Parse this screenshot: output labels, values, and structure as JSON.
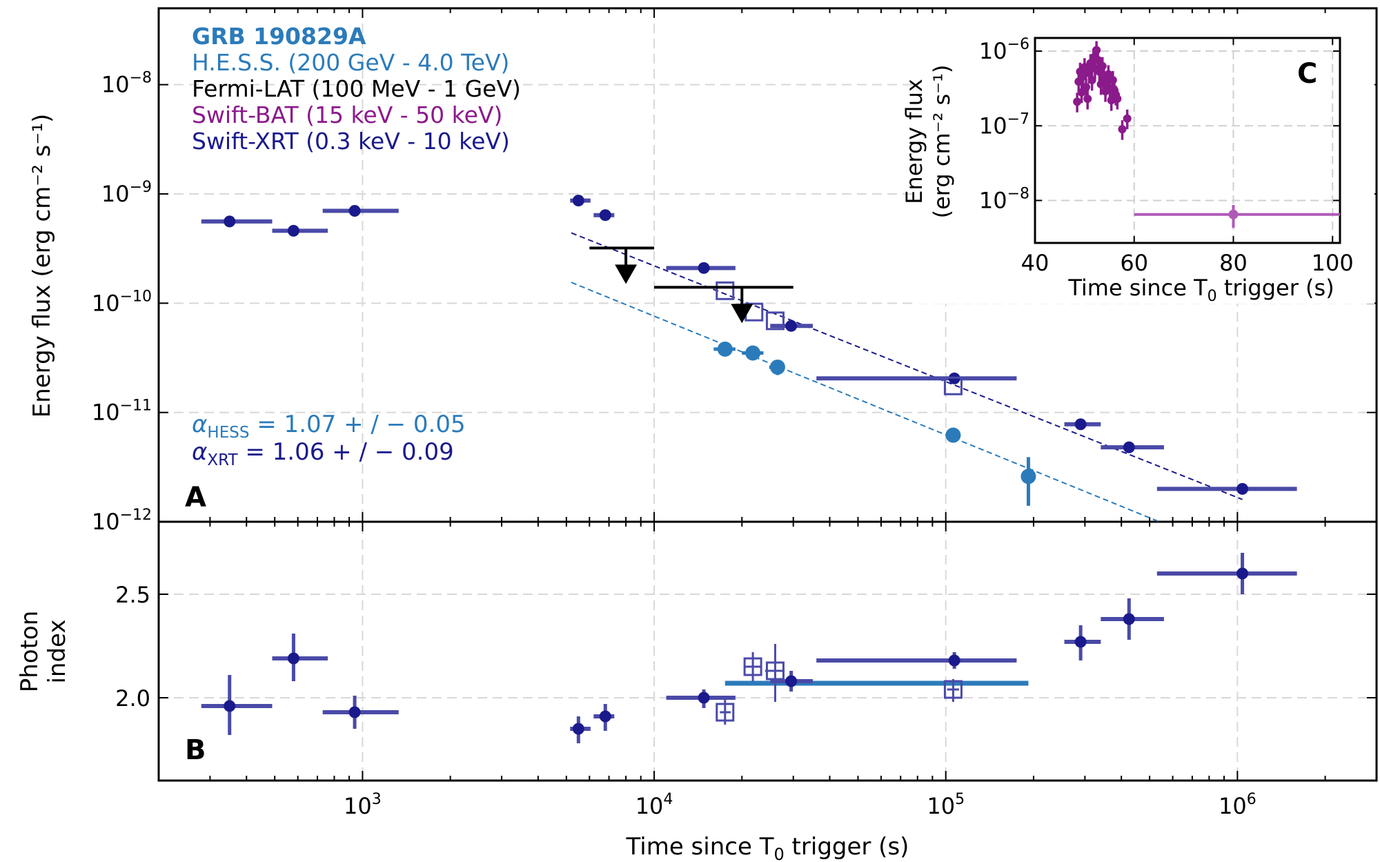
{
  "figure": {
    "xlabel_prefix": "Time since T",
    "xlabel_sub": "0",
    "xlabel_suffix": " trigger (s)",
    "colors": {
      "hess": "#2b7bba",
      "fermi": "#000000",
      "bat": "#8b1a8b",
      "xrt": "#1a1a8c",
      "xrt_err": "#4a4aa8",
      "bat_fit": "#b05ab8"
    }
  },
  "chart_data": [
    {
      "id": "A",
      "panel_label": "A",
      "type": "scatter",
      "x_scale": "log",
      "y_scale": "log",
      "xlim": [
        200,
        3000000
      ],
      "ylim": [
        1e-12,
        5e-08
      ],
      "ylabel": "Energy flux (erg cm⁻² s⁻¹)",
      "y_ticks": [
        {
          "value": 1e-12,
          "base": "10",
          "exp": "−12"
        },
        {
          "value": 1e-11,
          "base": "10",
          "exp": "−11"
        },
        {
          "value": 1e-10,
          "base": "10",
          "exp": "−10"
        },
        {
          "value": 1e-09,
          "base": "10",
          "exp": "−9"
        },
        {
          "value": 1e-08,
          "base": "10",
          "exp": "−8"
        }
      ],
      "grid": true,
      "legend": [
        {
          "text": "GRB 190829A",
          "color": "#2b7bba",
          "bold": true
        },
        {
          "text": "H.E.S.S. (200 GeV - 4.0 TeV)",
          "color": "#2b7bba"
        },
        {
          "text": "Fermi-LAT (100 MeV - 1 GeV)",
          "color": "#000000"
        },
        {
          "text": "Swift-BAT (15 keV - 50 keV)",
          "color": "#8b1a8b"
        },
        {
          "text": "Swift-XRT (0.3 keV - 10 keV)",
          "color": "#1a1a8c"
        }
      ],
      "annotations": [
        {
          "sym": "α",
          "sub": "HESS",
          "text": " = 1.07 + / − 0.05",
          "color": "#2b7bba"
        },
        {
          "sym": "α",
          "sub": "XRT",
          "text": " = 1.06 + / − 0.09",
          "color": "#1a1a8c"
        }
      ],
      "series": [
        {
          "name": "Swift-XRT",
          "marker": "circle",
          "points": [
            {
              "x": 350,
              "xlo": 280,
              "xhi": 490,
              "y": 5.6e-10
            },
            {
              "x": 580,
              "xlo": 490,
              "xhi": 760,
              "y": 4.6e-10
            },
            {
              "x": 940,
              "xlo": 730,
              "xhi": 1330,
              "y": 7e-10
            },
            {
              "x": 5500,
              "xlo": 5150,
              "xhi": 6050,
              "y": 8.7e-10
            },
            {
              "x": 6800,
              "xlo": 6200,
              "xhi": 7300,
              "y": 6.4e-10
            },
            {
              "x": 14800,
              "xlo": 11000,
              "xhi": 19000,
              "y": 2.1e-10
            },
            {
              "x": 29500,
              "xlo": 25000,
              "xhi": 35000,
              "y": 6.2e-11
            },
            {
              "x": 107000,
              "xlo": 36000,
              "xhi": 175000,
              "y": 2.05e-11
            },
            {
              "x": 290000,
              "xlo": 255000,
              "xhi": 340000,
              "y": 7.8e-12
            },
            {
              "x": 425000,
              "xlo": 340000,
              "xhi": 560000,
              "y": 4.8e-12
            },
            {
              "x": 1040000,
              "xlo": 530000,
              "xhi": 1600000,
              "y": 2e-12
            }
          ]
        },
        {
          "name": "Swift-XRT (open)",
          "marker": "open-square",
          "points": [
            {
              "x": 17500,
              "y": 1.3e-10
            },
            {
              "x": 22000,
              "y": 8.3e-11
            },
            {
              "x": 26000,
              "y": 6.9e-11
            },
            {
              "x": 106000,
              "y": 1.75e-11
            }
          ]
        },
        {
          "name": "H.E.S.S.",
          "marker": "circle",
          "points": [
            {
              "x": 17500,
              "xlo": 16000,
              "xhi": 19000,
              "y": 3.8e-11,
              "ylo": 3.3e-11,
              "yhi": 4.3e-11
            },
            {
              "x": 21800,
              "xlo": 20000,
              "xhi": 23700,
              "y": 3.5e-11,
              "ylo": 3.1e-11,
              "yhi": 3.9e-11
            },
            {
              "x": 26500,
              "xlo": 24800,
              "xhi": 28000,
              "y": 2.6e-11,
              "ylo": 2.2e-11,
              "yhi": 3e-11
            },
            {
              "x": 106000,
              "xlo": 101000,
              "xhi": 111000,
              "y": 6.2e-12,
              "ylo": 5.5e-12,
              "yhi": 7e-12
            },
            {
              "x": 192000,
              "xlo": 188000,
              "xhi": 196000,
              "y": 2.6e-12,
              "ylo": 1.4e-12,
              "yhi": 3.9e-12
            }
          ]
        },
        {
          "name": "Fermi-LAT",
          "marker": "upper-limit",
          "points": [
            {
              "x": 8000,
              "xlo": 6000,
              "xhi": 10000,
              "y": 3.2e-10
            },
            {
              "x": 20000,
              "xlo": 10000,
              "xhi": 30000,
              "y": 1.4e-10
            }
          ]
        }
      ],
      "fits": [
        {
          "name": "XRT fit",
          "x": [
            5200,
            1040000
          ],
          "y": [
            4.4e-10,
            1.6e-12
          ],
          "color": "#1a1a8c"
        },
        {
          "name": "HESS fit",
          "x": [
            5200,
            540000
          ],
          "y": [
            1.55e-10,
            1e-12
          ],
          "color": "#2b7bba"
        }
      ]
    },
    {
      "id": "B",
      "panel_label": "B",
      "type": "scatter",
      "x_scale": "log",
      "xlim": [
        200,
        3000000
      ],
      "ylim": [
        1.6,
        2.85
      ],
      "ylabel_line1": "Photon",
      "ylabel_line2": "index",
      "y_ticks": [
        {
          "value": 2.0,
          "label": "2.0"
        },
        {
          "value": 2.5,
          "label": "2.5"
        }
      ],
      "x_ticks": [
        {
          "value": 1000,
          "base": "10",
          "exp": "3"
        },
        {
          "value": 10000,
          "base": "10",
          "exp": "4"
        },
        {
          "value": 100000,
          "base": "10",
          "exp": "5"
        },
        {
          "value": 1000000,
          "base": "10",
          "exp": "6"
        }
      ],
      "grid": true,
      "series": [
        {
          "name": "Swift-XRT",
          "marker": "circle",
          "points": [
            {
              "x": 350,
              "xlo": 280,
              "xhi": 490,
              "y": 1.96,
              "ylo": 1.82,
              "yhi": 2.11
            },
            {
              "x": 580,
              "xlo": 490,
              "xhi": 760,
              "y": 2.19,
              "ylo": 2.08,
              "yhi": 2.31
            },
            {
              "x": 940,
              "xlo": 730,
              "xhi": 1330,
              "y": 1.93,
              "ylo": 1.85,
              "yhi": 2.01
            },
            {
              "x": 5500,
              "xlo": 5150,
              "xhi": 6050,
              "y": 1.85,
              "ylo": 1.78,
              "yhi": 1.91
            },
            {
              "x": 6800,
              "xlo": 6200,
              "xhi": 7300,
              "y": 1.91,
              "ylo": 1.84,
              "yhi": 1.97
            },
            {
              "x": 14800,
              "xlo": 11000,
              "xhi": 19000,
              "y": 2.0,
              "ylo": 1.95,
              "yhi": 2.04
            },
            {
              "x": 29500,
              "xlo": 25000,
              "xhi": 35000,
              "y": 2.08,
              "ylo": 2.03,
              "yhi": 2.13
            },
            {
              "x": 107000,
              "xlo": 36000,
              "xhi": 175000,
              "y": 2.18,
              "ylo": 2.14,
              "yhi": 2.22
            },
            {
              "x": 290000,
              "xlo": 255000,
              "xhi": 340000,
              "y": 2.27,
              "ylo": 2.18,
              "yhi": 2.35
            },
            {
              "x": 425000,
              "xlo": 340000,
              "xhi": 560000,
              "y": 2.38,
              "ylo": 2.28,
              "yhi": 2.48
            },
            {
              "x": 1040000,
              "xlo": 530000,
              "xhi": 1600000,
              "y": 2.6,
              "ylo": 2.5,
              "yhi": 2.7
            }
          ]
        },
        {
          "name": "Swift-XRT (open)",
          "marker": "open-square",
          "points": [
            {
              "x": 17500,
              "xlo": 16800,
              "xhi": 18300,
              "y": 1.93,
              "ylo": 1.87,
              "yhi": 1.99
            },
            {
              "x": 21800,
              "xlo": 20500,
              "xhi": 23200,
              "y": 2.15,
              "ylo": 2.08,
              "yhi": 2.22
            },
            {
              "x": 26000,
              "xlo": 24000,
              "xhi": 28000,
              "y": 2.13,
              "ylo": 1.98,
              "yhi": 2.26
            },
            {
              "x": 106000,
              "xlo": 101000,
              "xhi": 111000,
              "y": 2.04,
              "ylo": 1.98,
              "yhi": 2.09
            }
          ]
        },
        {
          "name": "H.E.S.S.",
          "marker": "bar",
          "points": [
            {
              "xlo": 17500,
              "xhi": 192000,
              "y": 2.07
            }
          ]
        }
      ]
    },
    {
      "id": "C",
      "panel_label": "C",
      "type": "scatter",
      "x_scale": "linear",
      "y_scale": "log",
      "xlim": [
        40,
        101.5
      ],
      "ylim": [
        2.7e-09,
        1.5e-06
      ],
      "xlabel_prefix": "Time since T",
      "xlabel_sub": "0",
      "xlabel_suffix": " trigger (s)",
      "ylabel_line1": "Energy flux",
      "ylabel_line2": "(erg cm⁻² s⁻¹)",
      "x_ticks": [
        {
          "value": 40,
          "label": "40"
        },
        {
          "value": 60,
          "label": "60"
        },
        {
          "value": 80,
          "label": "80"
        },
        {
          "value": 100,
          "label": "100"
        }
      ],
      "y_ticks": [
        {
          "value": 1e-08,
          "base": "10",
          "exp": "−8"
        },
        {
          "value": 1e-07,
          "base": "10",
          "exp": "−7"
        },
        {
          "value": 1e-06,
          "base": "10",
          "exp": "−6"
        }
      ],
      "grid": true,
      "series": [
        {
          "name": "Swift-BAT",
          "marker": "circle",
          "points": [
            {
              "x": 48.5,
              "y": 2.1e-07
            },
            {
              "x": 48.8,
              "y": 3.9e-07
            },
            {
              "x": 49.1,
              "y": 5.3e-07
            },
            {
              "x": 49.4,
              "y": 2.8e-07
            },
            {
              "x": 49.7,
              "y": 4.6e-07
            },
            {
              "x": 50.0,
              "y": 6.1e-07
            },
            {
              "x": 50.3,
              "y": 3.3e-07
            },
            {
              "x": 50.6,
              "y": 2.3e-07
            },
            {
              "x": 50.9,
              "y": 5.1e-07
            },
            {
              "x": 51.2,
              "y": 6.9e-07
            },
            {
              "x": 51.5,
              "y": 4.1e-07
            },
            {
              "x": 51.8,
              "y": 8.2e-07
            },
            {
              "x": 52.1,
              "y": 5.9e-07
            },
            {
              "x": 52.4,
              "y": 1.03e-06
            },
            {
              "x": 52.7,
              "y": 7.6e-07
            },
            {
              "x": 53.0,
              "y": 5.3e-07
            },
            {
              "x": 53.3,
              "y": 3.6e-07
            },
            {
              "x": 53.6,
              "y": 6.3e-07
            },
            {
              "x": 53.9,
              "y": 4.3e-07
            },
            {
              "x": 54.2,
              "y": 2.9e-07
            },
            {
              "x": 54.5,
              "y": 3.7e-07
            },
            {
              "x": 54.8,
              "y": 4.9e-07
            },
            {
              "x": 55.1,
              "y": 3.2e-07
            },
            {
              "x": 55.4,
              "y": 2.2e-07
            },
            {
              "x": 55.7,
              "y": 4.1e-07
            },
            {
              "x": 56.0,
              "y": 3e-07
            },
            {
              "x": 56.3,
              "y": 2.6e-07
            },
            {
              "x": 56.6,
              "y": 2.3e-07
            },
            {
              "x": 57.6,
              "y": 9e-08
            },
            {
              "x": 58.6,
              "y": 1.25e-07
            }
          ]
        },
        {
          "name": "Swift-BAT (late)",
          "marker": "circle",
          "points": [
            {
              "x": 80,
              "xlo": 60,
              "xhi": 101.5,
              "y": 6.5e-09,
              "ylo": 4.3e-09,
              "yhi": 8.7e-09
            }
          ]
        }
      ]
    }
  ]
}
